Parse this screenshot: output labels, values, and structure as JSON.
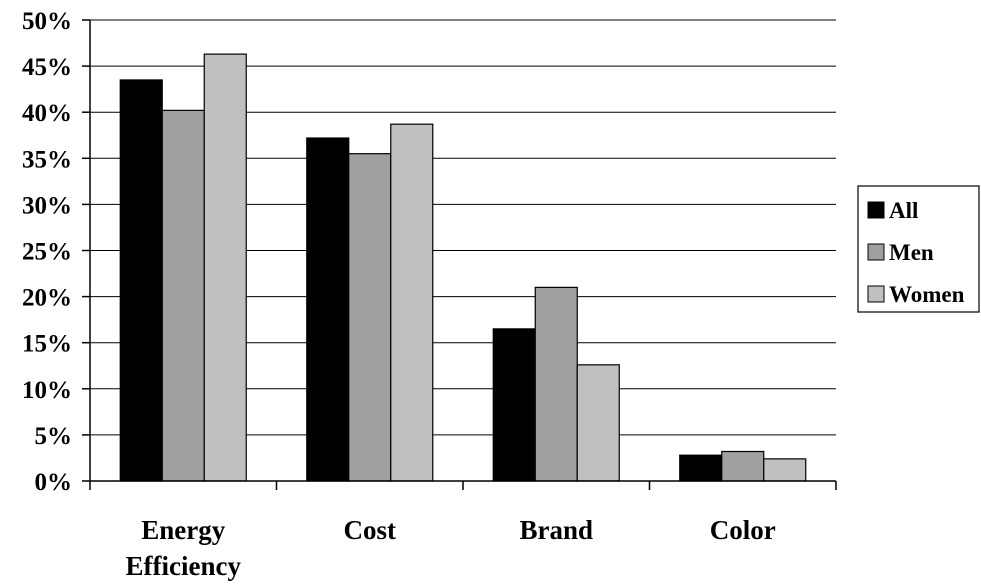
{
  "chart_data": {
    "type": "bar",
    "categories": [
      [
        "Energy",
        "Efficiency"
      ],
      [
        "Cost"
      ],
      [
        "Brand"
      ],
      [
        "Color"
      ]
    ],
    "series": [
      {
        "name": "All",
        "color": "#000000",
        "values": [
          43.5,
          37.2,
          16.5,
          2.8
        ]
      },
      {
        "name": "Men",
        "color": "#a0a0a0",
        "values": [
          40.2,
          35.5,
          21.0,
          3.2
        ]
      },
      {
        "name": "Women",
        "color": "#c0c0c0",
        "values": [
          46.3,
          38.7,
          12.6,
          2.4
        ]
      }
    ],
    "y_ticks": [
      "0%",
      "5%",
      "10%",
      "15%",
      "20%",
      "25%",
      "30%",
      "35%",
      "40%",
      "45%",
      "50%"
    ],
    "ylim": [
      0,
      50
    ],
    "grid": true,
    "legend_position": "right"
  }
}
